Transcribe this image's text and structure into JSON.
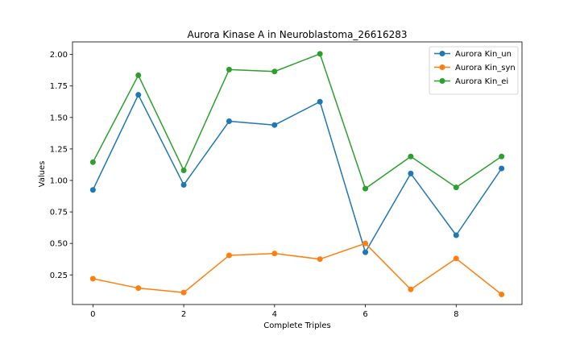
{
  "chart_data": {
    "type": "line",
    "title": "Aurora Kinase A in Neuroblastoma_26616283",
    "xlabel": "Complete Triples",
    "ylabel": "Values",
    "x": [
      0,
      1,
      2,
      3,
      4,
      5,
      6,
      7,
      8,
      9
    ],
    "xlim": [
      -0.45,
      9.45
    ],
    "ylim": [
      0.015,
      2.1
    ],
    "xticks": [
      0,
      2,
      4,
      6,
      8
    ],
    "yticks": [
      0.25,
      0.5,
      0.75,
      1.0,
      1.25,
      1.5,
      1.75,
      2.0
    ],
    "grid": false,
    "legend_position": "top-right",
    "series": [
      {
        "name": "Aurora Kin_un",
        "color": "#1f77b4",
        "values": [
          0.925,
          1.68,
          0.965,
          1.47,
          1.44,
          1.625,
          0.43,
          1.055,
          0.565,
          1.095
        ]
      },
      {
        "name": "Aurora Kin_syn",
        "color": "#ff7f0e",
        "values": [
          0.22,
          0.145,
          0.11,
          0.405,
          0.42,
          0.375,
          0.5,
          0.135,
          0.38,
          0.095
        ]
      },
      {
        "name": "Aurora Kin_ei",
        "color": "#2ca02c",
        "values": [
          1.145,
          1.835,
          1.08,
          1.88,
          1.865,
          2.005,
          0.935,
          1.19,
          0.945,
          1.19
        ]
      }
    ]
  }
}
